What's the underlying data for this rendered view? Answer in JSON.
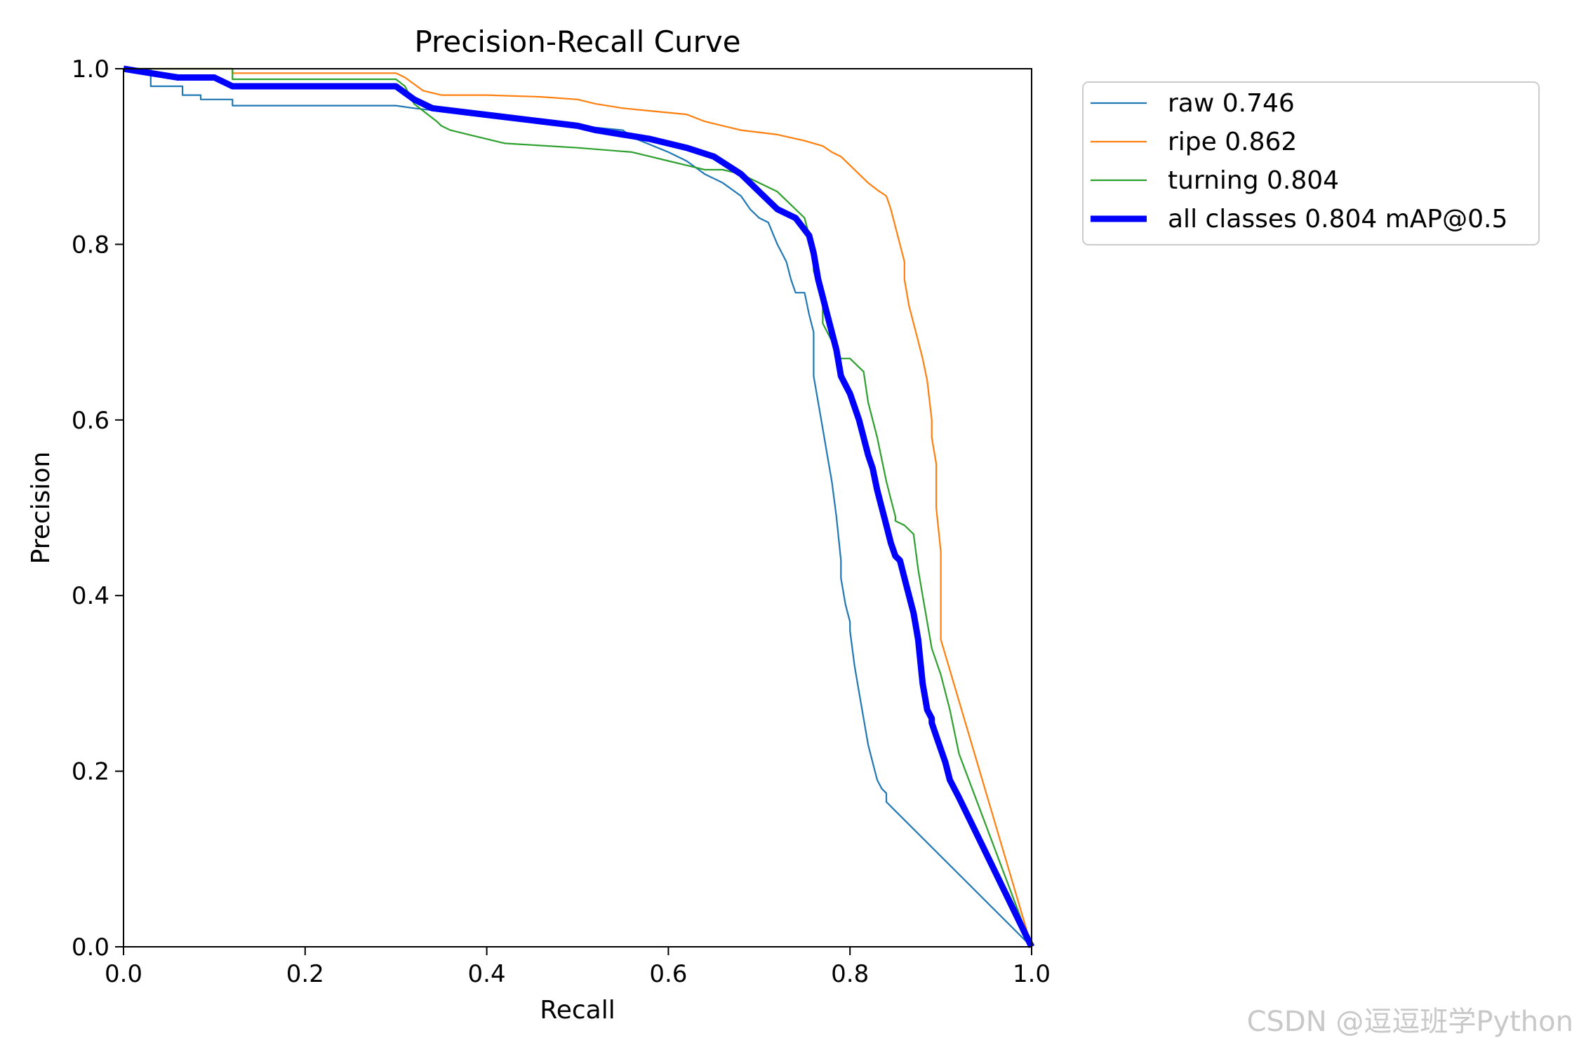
{
  "chart_data": {
    "type": "line",
    "title": "Precision-Recall Curve",
    "xlabel": "Recall",
    "ylabel": "Precision",
    "xlim": [
      0,
      1
    ],
    "ylim": [
      0,
      1
    ],
    "xticks": [
      "0.0",
      "0.2",
      "0.4",
      "0.6",
      "0.8",
      "1.0"
    ],
    "yticks": [
      "0.0",
      "0.2",
      "0.4",
      "0.6",
      "0.8",
      "1.0"
    ],
    "legend_position": "outside-top-right",
    "series": [
      {
        "name": "raw",
        "label": "raw 0.746",
        "color": "#1f77b4",
        "x": [
          0.0,
          0.03,
          0.03,
          0.065,
          0.065,
          0.085,
          0.085,
          0.12,
          0.12,
          0.3,
          0.32,
          0.45,
          0.55,
          0.56,
          0.6,
          0.62,
          0.64,
          0.66,
          0.68,
          0.69,
          0.7,
          0.71,
          0.72,
          0.725,
          0.73,
          0.735,
          0.74,
          0.75,
          0.755,
          0.76,
          0.76,
          0.76,
          0.765,
          0.77,
          0.775,
          0.78,
          0.785,
          0.79,
          0.79,
          0.795,
          0.8,
          0.8,
          0.805,
          0.81,
          0.815,
          0.82,
          0.825,
          0.83,
          0.835,
          0.84,
          0.84,
          1.0
        ],
        "y": [
          1.0,
          1.0,
          0.98,
          0.98,
          0.97,
          0.97,
          0.965,
          0.965,
          0.958,
          0.958,
          0.955,
          0.94,
          0.93,
          0.922,
          0.905,
          0.895,
          0.88,
          0.87,
          0.855,
          0.84,
          0.83,
          0.825,
          0.8,
          0.79,
          0.78,
          0.76,
          0.745,
          0.745,
          0.72,
          0.7,
          0.69,
          0.65,
          0.62,
          0.59,
          0.56,
          0.53,
          0.49,
          0.44,
          0.42,
          0.39,
          0.37,
          0.36,
          0.32,
          0.29,
          0.26,
          0.23,
          0.21,
          0.19,
          0.18,
          0.175,
          0.165,
          0.0
        ]
      },
      {
        "name": "ripe",
        "label": "ripe 0.862",
        "color": "#ff7f0e",
        "x": [
          0.0,
          0.12,
          0.12,
          0.3,
          0.31,
          0.33,
          0.35,
          0.4,
          0.46,
          0.5,
          0.52,
          0.55,
          0.58,
          0.62,
          0.64,
          0.66,
          0.68,
          0.72,
          0.75,
          0.77,
          0.78,
          0.79,
          0.8,
          0.81,
          0.82,
          0.83,
          0.84,
          0.845,
          0.85,
          0.855,
          0.86,
          0.86,
          0.865,
          0.87,
          0.875,
          0.88,
          0.885,
          0.89,
          0.89,
          0.895,
          0.895,
          0.9,
          0.9,
          1.0
        ],
        "y": [
          1.0,
          1.0,
          0.995,
          0.995,
          0.99,
          0.975,
          0.97,
          0.97,
          0.968,
          0.965,
          0.96,
          0.955,
          0.952,
          0.948,
          0.94,
          0.935,
          0.93,
          0.925,
          0.918,
          0.912,
          0.905,
          0.9,
          0.89,
          0.88,
          0.87,
          0.862,
          0.855,
          0.84,
          0.82,
          0.8,
          0.78,
          0.76,
          0.73,
          0.71,
          0.69,
          0.67,
          0.645,
          0.6,
          0.58,
          0.55,
          0.5,
          0.45,
          0.35,
          0.0
        ]
      },
      {
        "name": "turning",
        "label": "turning 0.804",
        "color": "#2ca02c",
        "x": [
          0.0,
          0.12,
          0.12,
          0.3,
          0.31,
          0.32,
          0.345,
          0.35,
          0.36,
          0.38,
          0.4,
          0.42,
          0.5,
          0.56,
          0.58,
          0.6,
          0.62,
          0.64,
          0.66,
          0.68,
          0.7,
          0.72,
          0.73,
          0.75,
          0.76,
          0.76,
          0.77,
          0.77,
          0.78,
          0.785,
          0.79,
          0.8,
          0.81,
          0.815,
          0.82,
          0.83,
          0.835,
          0.84,
          0.845,
          0.85,
          0.85,
          0.86,
          0.87,
          0.875,
          0.88,
          0.885,
          0.89,
          0.9,
          0.91,
          0.92,
          1.0
        ],
        "y": [
          1.0,
          1.0,
          0.988,
          0.988,
          0.98,
          0.96,
          0.94,
          0.935,
          0.93,
          0.925,
          0.92,
          0.915,
          0.91,
          0.905,
          0.9,
          0.895,
          0.89,
          0.885,
          0.885,
          0.88,
          0.87,
          0.86,
          0.85,
          0.83,
          0.79,
          0.77,
          0.73,
          0.71,
          0.69,
          0.68,
          0.67,
          0.67,
          0.66,
          0.655,
          0.62,
          0.58,
          0.555,
          0.53,
          0.51,
          0.49,
          0.485,
          0.48,
          0.47,
          0.43,
          0.4,
          0.37,
          0.34,
          0.31,
          0.27,
          0.22,
          0.0
        ]
      },
      {
        "name": "all classes",
        "label": "all classes 0.804 mAP@0.5",
        "color": "#0000ff",
        "x": [
          0.0,
          0.03,
          0.06,
          0.1,
          0.12,
          0.3,
          0.32,
          0.34,
          0.38,
          0.42,
          0.46,
          0.5,
          0.52,
          0.55,
          0.58,
          0.62,
          0.65,
          0.68,
          0.7,
          0.72,
          0.74,
          0.755,
          0.76,
          0.765,
          0.77,
          0.775,
          0.78,
          0.785,
          0.79,
          0.795,
          0.8,
          0.81,
          0.815,
          0.82,
          0.825,
          0.83,
          0.835,
          0.84,
          0.845,
          0.85,
          0.855,
          0.86,
          0.865,
          0.87,
          0.875,
          0.88,
          0.885,
          0.89,
          0.89,
          0.895,
          0.9,
          0.905,
          0.91,
          0.92,
          1.0
        ],
        "y": [
          1.0,
          0.995,
          0.99,
          0.99,
          0.98,
          0.98,
          0.965,
          0.955,
          0.95,
          0.945,
          0.94,
          0.935,
          0.93,
          0.925,
          0.92,
          0.91,
          0.9,
          0.88,
          0.86,
          0.84,
          0.83,
          0.81,
          0.79,
          0.76,
          0.74,
          0.72,
          0.7,
          0.68,
          0.65,
          0.64,
          0.63,
          0.6,
          0.58,
          0.56,
          0.545,
          0.52,
          0.5,
          0.48,
          0.46,
          0.445,
          0.44,
          0.42,
          0.4,
          0.38,
          0.35,
          0.3,
          0.27,
          0.26,
          0.255,
          0.24,
          0.225,
          0.21,
          0.19,
          0.17,
          0.0
        ]
      }
    ]
  },
  "watermark": "CSDN @逗逗班学Python"
}
